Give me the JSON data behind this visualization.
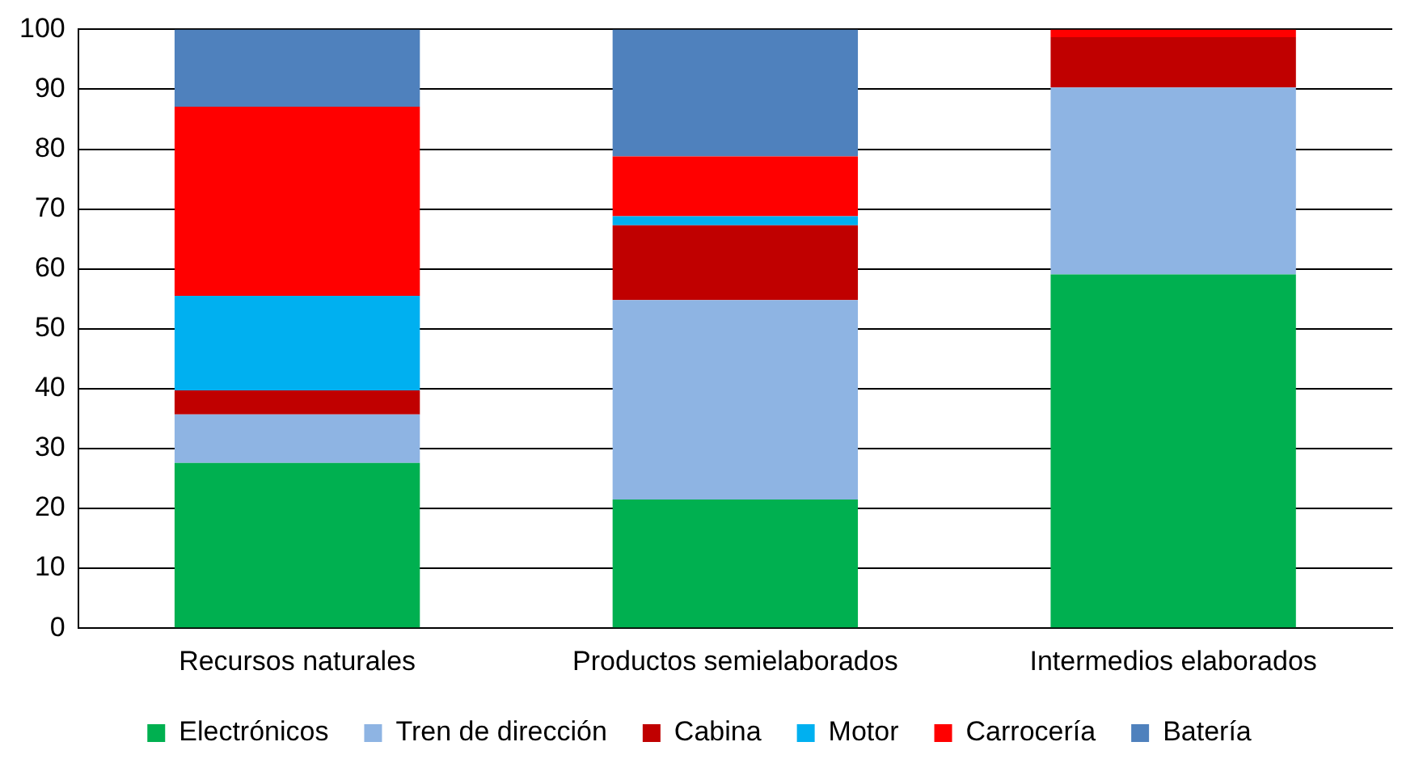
{
  "chart_data": {
    "type": "bar",
    "stacked": true,
    "categories": [
      "Recursos naturales",
      "Productos semielaborados",
      "Intermedios elaborados"
    ],
    "series": [
      {
        "name": "Electrónicos",
        "color": "#00b050",
        "values": [
          27.6,
          21.5,
          59.1
        ]
      },
      {
        "name": "Tren de dirección",
        "color": "#8eb4e3",
        "values": [
          8.1,
          33.3,
          31.2
        ]
      },
      {
        "name": "Cabina",
        "color": "#c00000",
        "values": [
          4.0,
          12.5,
          8.4
        ]
      },
      {
        "name": "Motor",
        "color": "#00b0f0",
        "values": [
          15.8,
          1.5,
          0
        ]
      },
      {
        "name": "Carrocería",
        "color": "#ff0000",
        "values": [
          31.6,
          10.0,
          1.3
        ]
      },
      {
        "name": "Batería",
        "color": "#4f81bd",
        "values": [
          12.9,
          21.2,
          0
        ]
      }
    ],
    "ylim": [
      0,
      100
    ],
    "yticks": [
      0,
      10,
      20,
      30,
      40,
      50,
      60,
      70,
      80,
      90,
      100
    ],
    "grid": "y",
    "legend": "bottom"
  }
}
